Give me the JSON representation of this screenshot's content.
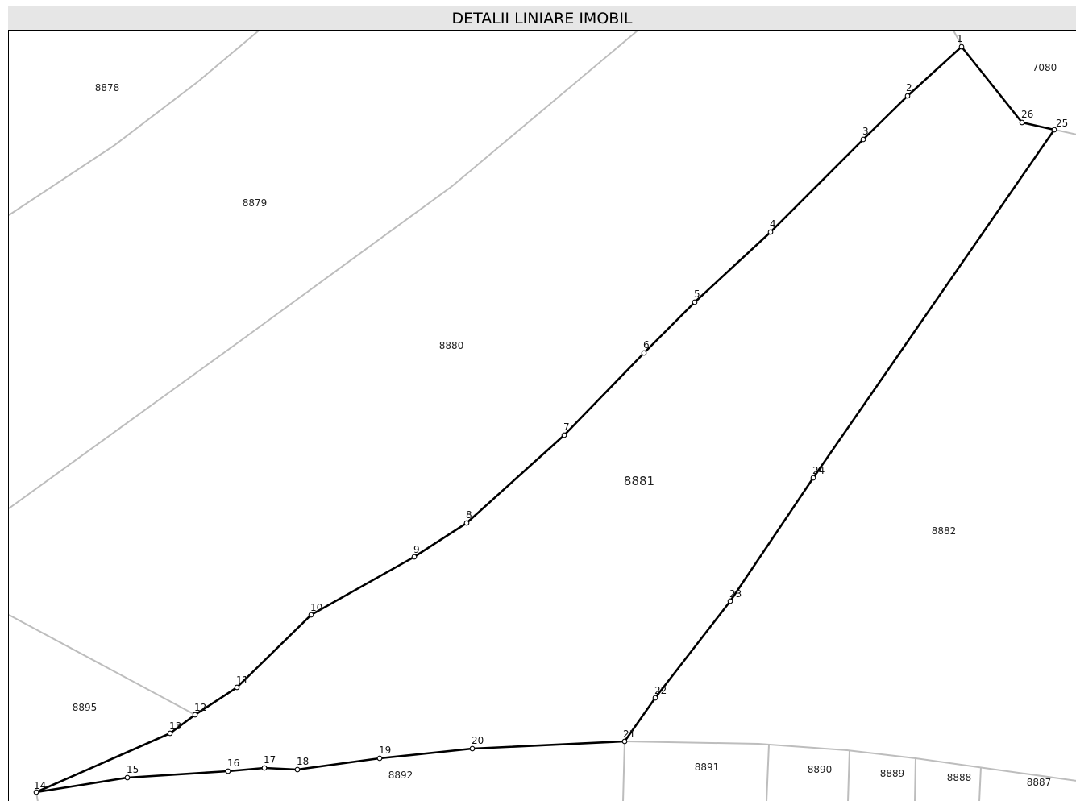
{
  "header": {
    "title": "DETALII LINIARE IMOBIL"
  },
  "main_parcel": "8881",
  "parcels": [
    "8878",
    "8879",
    "8880",
    "8881",
    "8882",
    "7080",
    "8895",
    "8892",
    "8891",
    "8890",
    "8889",
    "8888",
    "8887"
  ],
  "vertices": [
    "1",
    "2",
    "3",
    "4",
    "5",
    "6",
    "7",
    "8",
    "9",
    "10",
    "11",
    "12",
    "13",
    "14",
    "15",
    "16",
    "17",
    "18",
    "19",
    "20",
    "21",
    "22",
    "23",
    "24",
    "25",
    "26"
  ],
  "colors": {
    "header_bg": "#e6e6e6",
    "boundary": "#000000",
    "neighbor_lines": "#bdbdbd"
  }
}
